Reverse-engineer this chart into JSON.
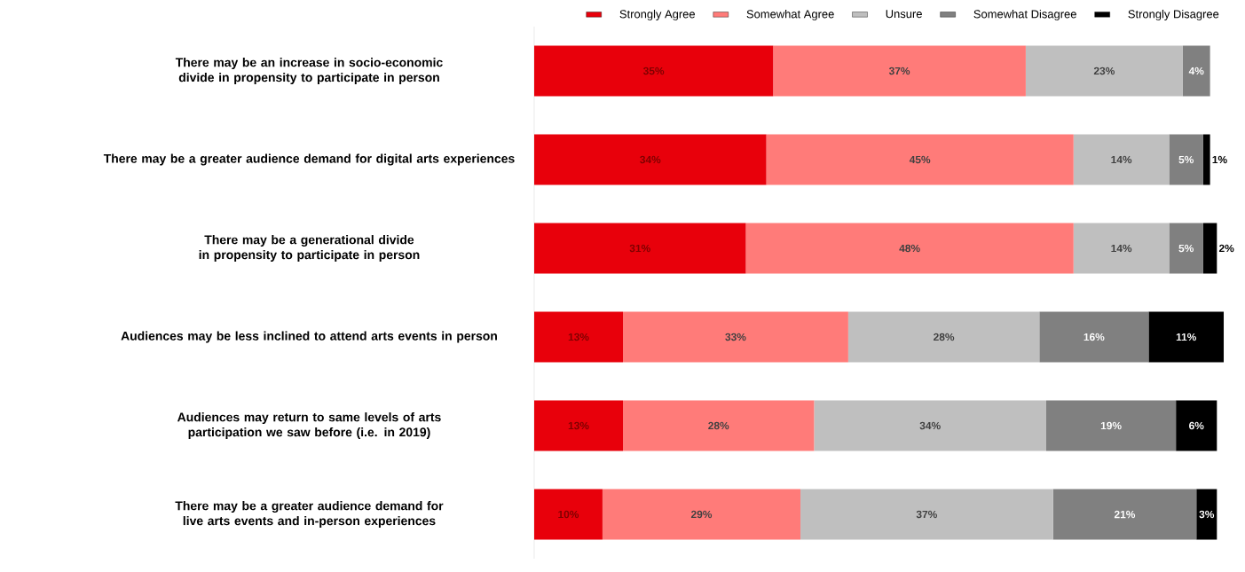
{
  "chart_data": {
    "type": "bar",
    "orientation": "horizontal",
    "stacked": true,
    "legend": "top",
    "data_labels": true,
    "categories": [
      "There may be an increase in socio-economic divide in propensity to participate in person",
      "There may be a greater audience demand for digital arts experiences",
      "There may be a generational divide in propensity to participate in person",
      "Audiences may be less inclined to attend arts events in person",
      "Audiences may return to same levels of arts participation we saw before (i.e. in 2019)",
      "There may be a greater audience demand for live arts events and in-person experiences"
    ],
    "series": [
      {
        "name": "Strongly Agree",
        "color": "#e8000b",
        "values": [
          35,
          34,
          31,
          13,
          13,
          10
        ],
        "value_labels": [
          "35%",
          "34%",
          "31%",
          "13%",
          "13%",
          "10%"
        ]
      },
      {
        "name": "Somewhat Agree",
        "color": "#ff7b79",
        "values": [
          37,
          45,
          48,
          33,
          28,
          29
        ],
        "value_labels": [
          "37%",
          "45%",
          "48%",
          "33%",
          "28%",
          "29%"
        ]
      },
      {
        "name": "Unsure",
        "color": "#bfbfbf",
        "values": [
          23,
          14,
          14,
          28,
          34,
          37
        ],
        "value_labels": [
          "23%",
          "14%",
          "14%",
          "28%",
          "34%",
          "37%"
        ]
      },
      {
        "name": "Somewhat Disagree",
        "color": "#808080",
        "values": [
          4,
          5,
          5,
          16,
          19,
          21
        ],
        "value_labels": [
          "4%",
          "5%",
          "5%",
          "16%",
          "19%",
          "21%"
        ]
      },
      {
        "name": "Strongly Disagree",
        "color": "#000000",
        "values": [
          null,
          1,
          2,
          11,
          6,
          3
        ],
        "value_labels": [
          null,
          "1%",
          "2%",
          "11%",
          "6%",
          "3%"
        ]
      }
    ]
  }
}
